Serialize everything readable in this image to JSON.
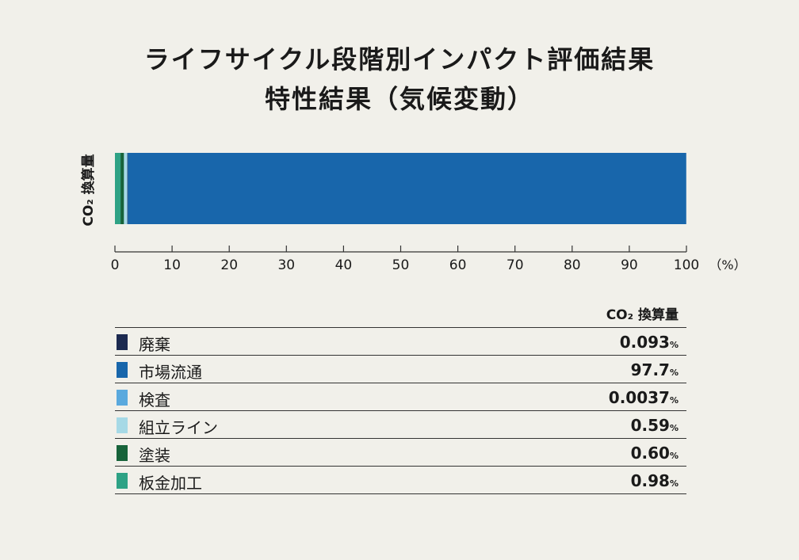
{
  "titles": {
    "line1": "ライフサイクル段階別インパクト評価結果",
    "line2": "特性結果（気候変動）"
  },
  "chart_data": {
    "type": "bar",
    "orientation": "horizontal-stacked",
    "categories": [
      "CO₂ 換算量"
    ],
    "ylabel": "CO₂ 換算量",
    "xlabel": "",
    "xlim": [
      0,
      100
    ],
    "x_ticks": [
      "0",
      "10",
      "20",
      "30",
      "40",
      "50",
      "60",
      "70",
      "80",
      "90",
      "100"
    ],
    "x_unit": "（%）",
    "legend_placement": "bottom",
    "series": [
      {
        "name": "廃棄",
        "values": [
          0.093
        ],
        "label": "0.093",
        "unit": "%",
        "color": "#1c2a50"
      },
      {
        "name": "市場流通",
        "values": [
          97.7
        ],
        "label": "97.7",
        "unit": "%",
        "color": "#1866ab"
      },
      {
        "name": "検査",
        "values": [
          0.0037
        ],
        "label": "0.0037",
        "unit": "%",
        "color": "#5aa9de"
      },
      {
        "name": "組立ライン",
        "values": [
          0.59
        ],
        "label": "0.59",
        "unit": "%",
        "color": "#a6d9e6"
      },
      {
        "name": "塗装",
        "values": [
          0.6
        ],
        "label": "0.60",
        "unit": "%",
        "color": "#17633a"
      },
      {
        "name": "板金加工",
        "values": [
          0.98
        ],
        "label": "0.98",
        "unit": "%",
        "color": "#2ea285"
      }
    ],
    "stack_order": [
      "板金加工",
      "塗装",
      "組立ライン",
      "検査",
      "廃棄",
      "市場流通"
    ],
    "table_header": "CO₂ 換算量"
  }
}
